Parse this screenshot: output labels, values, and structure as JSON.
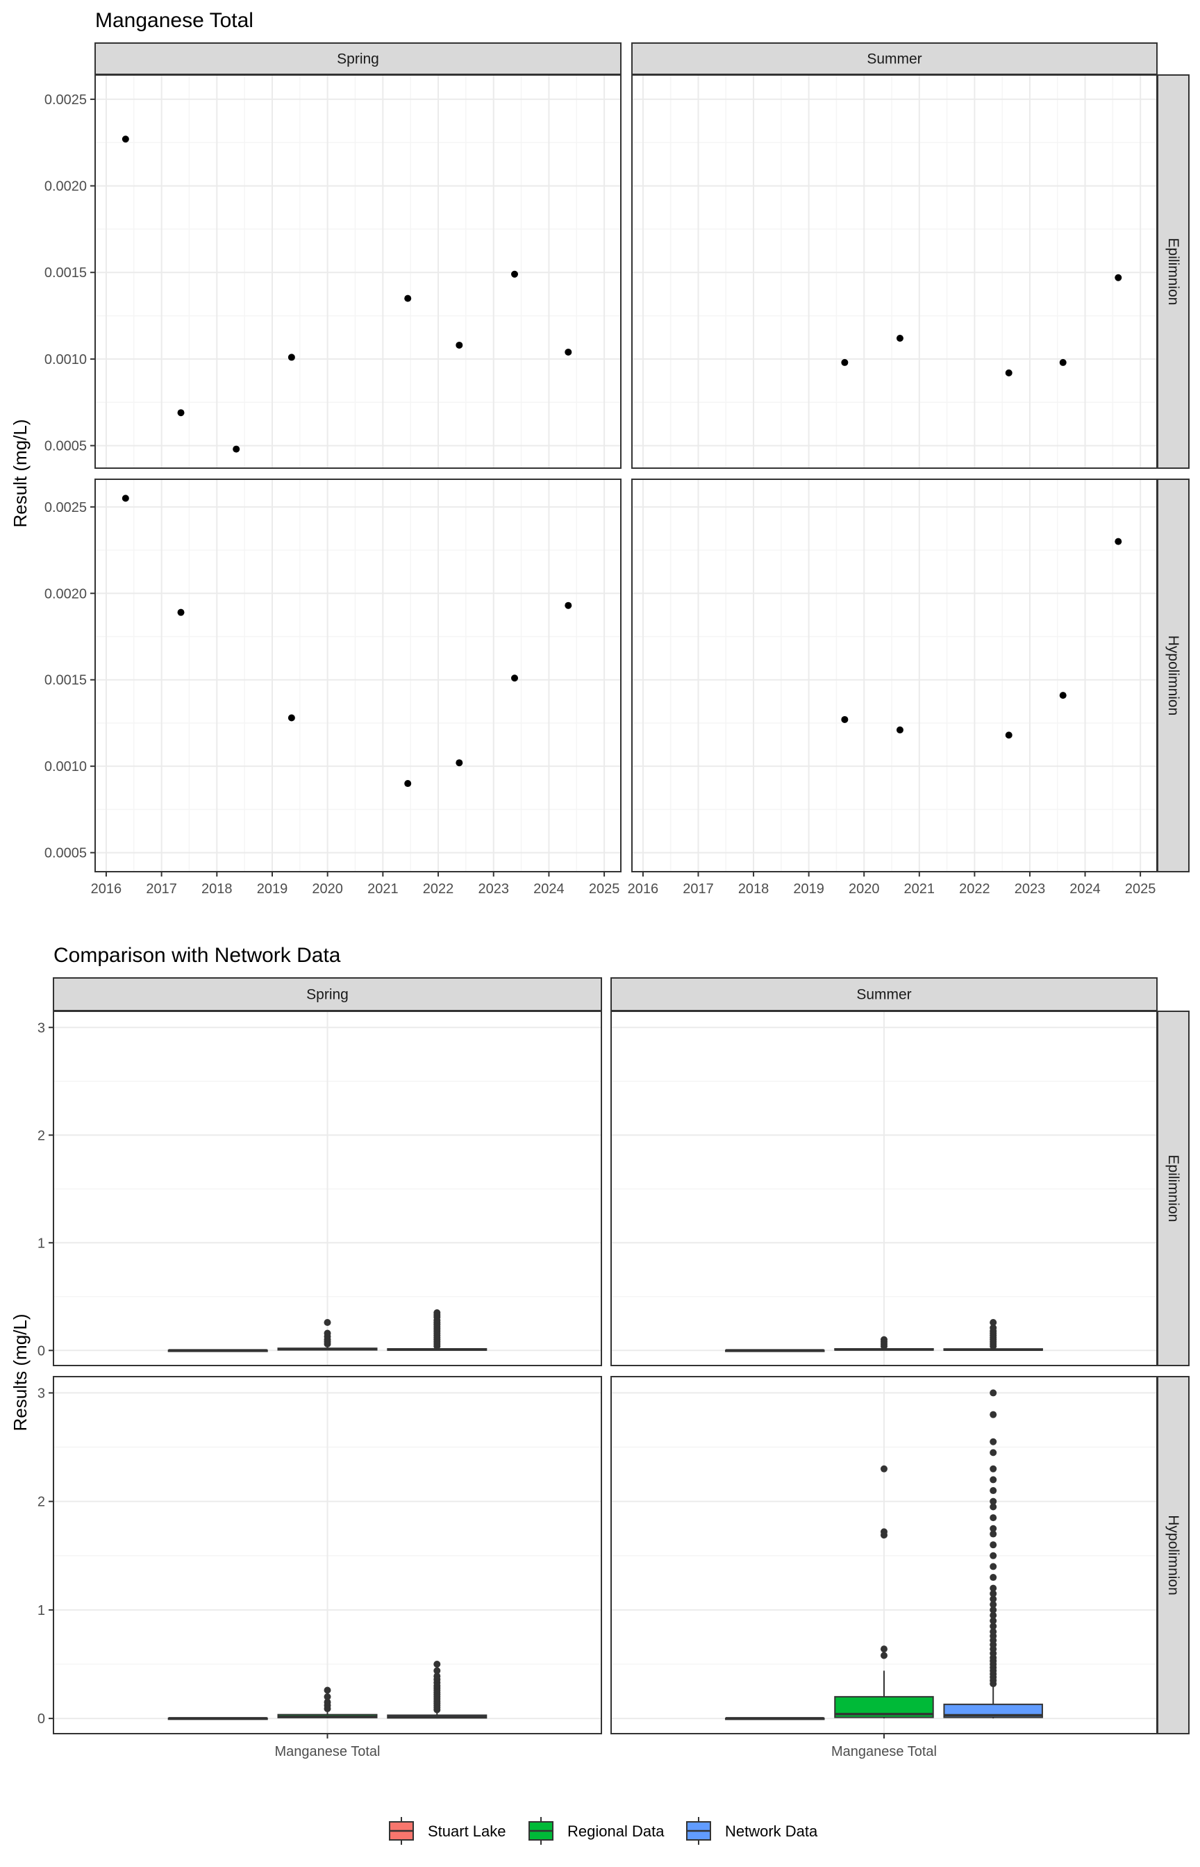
{
  "colors": {
    "strip_fill": "#d9d9d9",
    "panel_border": "#333333",
    "grid_major": "#ebebeb",
    "grid_minor": "#f5f5f5",
    "point": "#000000",
    "box_stroke": "#333333",
    "stuart_lake": "#F8766D",
    "regional_data": "#00BA38",
    "network_data": "#619CFF"
  },
  "legend": {
    "items": [
      {
        "label": "Stuart Lake",
        "color": "#F8766D"
      },
      {
        "label": "Regional Data",
        "color": "#00BA38"
      },
      {
        "label": "Network Data",
        "color": "#619CFF"
      }
    ]
  },
  "chart_data": [
    {
      "type": "scatter",
      "title": "Manganese Total",
      "ylabel": "Result (mg/L)",
      "xlabel": "",
      "facet_columns": [
        "Spring",
        "Summer"
      ],
      "facet_rows": [
        "Epilimnion",
        "Hypolimnion"
      ],
      "xlim": [
        2015.8,
        2025.3
      ],
      "x_ticks": [
        "2016",
        "2017",
        "2018",
        "2019",
        "2020",
        "2021",
        "2022",
        "2023",
        "2024",
        "2025"
      ],
      "row_ylims": [
        [
          0.00037,
          0.00264
        ],
        [
          0.00039,
          0.00266
        ]
      ],
      "y_ticks": [
        "0.0005",
        "0.0010",
        "0.0015",
        "0.0020",
        "0.0025"
      ],
      "panels": [
        {
          "column": "Spring",
          "row": "Epilimnion",
          "points": [
            [
              2016.35,
              0.00227
            ],
            [
              2017.35,
              0.00069
            ],
            [
              2018.35,
              0.00048
            ],
            [
              2019.35,
              0.00101
            ],
            [
              2021.45,
              0.00135
            ],
            [
              2022.38,
              0.00108
            ],
            [
              2023.38,
              0.00149
            ],
            [
              2024.35,
              0.00104
            ]
          ]
        },
        {
          "column": "Summer",
          "row": "Epilimnion",
          "points": [
            [
              2019.65,
              0.00098
            ],
            [
              2020.65,
              0.00112
            ],
            [
              2022.62,
              0.00092
            ],
            [
              2023.6,
              0.00098
            ],
            [
              2024.6,
              0.00147
            ]
          ]
        },
        {
          "column": "Spring",
          "row": "Hypolimnion",
          "points": [
            [
              2016.35,
              0.00255
            ],
            [
              2017.35,
              0.00189
            ],
            [
              2019.35,
              0.00128
            ],
            [
              2021.45,
              0.0009
            ],
            [
              2022.38,
              0.00102
            ],
            [
              2023.38,
              0.00151
            ],
            [
              2024.35,
              0.00193
            ]
          ]
        },
        {
          "column": "Summer",
          "row": "Hypolimnion",
          "points": [
            [
              2019.65,
              0.00127
            ],
            [
              2020.65,
              0.00121
            ],
            [
              2022.62,
              0.00118
            ],
            [
              2023.6,
              0.00141
            ],
            [
              2024.6,
              0.0023
            ]
          ]
        }
      ]
    },
    {
      "type": "box",
      "title": "Comparison with Network Data",
      "ylabel": "Results (mg/L)",
      "xlabel": "",
      "facet_columns": [
        "Spring",
        "Summer"
      ],
      "facet_rows": [
        "Epilimnion",
        "Hypolimnion"
      ],
      "category": "Manganese Total",
      "groups": [
        "Stuart Lake",
        "Regional Data",
        "Network Data"
      ],
      "ylim": [
        -0.14,
        3.15
      ],
      "y_ticks": [
        0,
        1,
        2,
        3
      ],
      "panels": [
        {
          "column": "Spring",
          "row": "Epilimnion",
          "boxes": [
            {
              "group": "Stuart Lake",
              "q1": 0.0007,
              "median": 0.001,
              "q3": 0.0013,
              "whisker_low": 0.0005,
              "whisker_high": 0.0023,
              "outliers": []
            },
            {
              "group": "Regional Data",
              "q1": 0.005,
              "median": 0.01,
              "q3": 0.02,
              "whisker_low": 0.0005,
              "whisker_high": 0.04,
              "outliers": [
                0.06,
                0.08,
                0.1,
                0.13,
                0.16,
                0.26
              ]
            },
            {
              "group": "Network Data",
              "q1": 0.003,
              "median": 0.008,
              "q3": 0.015,
              "whisker_low": 0.0005,
              "whisker_high": 0.03,
              "outliers": [
                0.04,
                0.06,
                0.08,
                0.1,
                0.12,
                0.14,
                0.16,
                0.18,
                0.2,
                0.22,
                0.24,
                0.26,
                0.28,
                0.31,
                0.33,
                0.35
              ]
            }
          ]
        },
        {
          "column": "Summer",
          "row": "Epilimnion",
          "boxes": [
            {
              "group": "Stuart Lake",
              "q1": 0.0009,
              "median": 0.001,
              "q3": 0.0012,
              "whisker_low": 0.0009,
              "whisker_high": 0.0015,
              "outliers": []
            },
            {
              "group": "Regional Data",
              "q1": 0.004,
              "median": 0.008,
              "q3": 0.015,
              "whisker_low": 0.0005,
              "whisker_high": 0.03,
              "outliers": [
                0.04,
                0.06,
                0.08,
                0.1
              ]
            },
            {
              "group": "Network Data",
              "q1": 0.003,
              "median": 0.007,
              "q3": 0.014,
              "whisker_low": 0.0005,
              "whisker_high": 0.03,
              "outliers": [
                0.04,
                0.06,
                0.08,
                0.1,
                0.12,
                0.14,
                0.16,
                0.18,
                0.21,
                0.26
              ]
            }
          ]
        },
        {
          "column": "Spring",
          "row": "Hypolimnion",
          "boxes": [
            {
              "group": "Stuart Lake",
              "q1": 0.001,
              "median": 0.0013,
              "q3": 0.0019,
              "whisker_low": 0.0009,
              "whisker_high": 0.0026,
              "outliers": []
            },
            {
              "group": "Regional Data",
              "q1": 0.008,
              "median": 0.015,
              "q3": 0.035,
              "whisker_low": 0.001,
              "whisker_high": 0.07,
              "outliers": [
                0.09,
                0.12,
                0.15,
                0.2,
                0.26
              ]
            },
            {
              "group": "Network Data",
              "q1": 0.005,
              "median": 0.012,
              "q3": 0.03,
              "whisker_low": 0.0005,
              "whisker_high": 0.06,
              "outliers": [
                0.08,
                0.1,
                0.12,
                0.14,
                0.16,
                0.18,
                0.2,
                0.22,
                0.24,
                0.26,
                0.28,
                0.3,
                0.33,
                0.36,
                0.39,
                0.44,
                0.5
              ]
            }
          ]
        },
        {
          "column": "Summer",
          "row": "Hypolimnion",
          "boxes": [
            {
              "group": "Stuart Lake",
              "q1": 0.0012,
              "median": 0.0013,
              "q3": 0.0014,
              "whisker_low": 0.0012,
              "whisker_high": 0.0023,
              "outliers": []
            },
            {
              "group": "Regional Data",
              "q1": 0.01,
              "median": 0.04,
              "q3": 0.2,
              "whisker_low": 0.0005,
              "whisker_high": 0.44,
              "outliers": [
                0.58,
                0.64,
                1.69,
                1.72,
                2.3
              ]
            },
            {
              "group": "Network Data",
              "q1": 0.01,
              "median": 0.03,
              "q3": 0.13,
              "whisker_low": 0.0005,
              "whisker_high": 0.3,
              "outliers": [
                0.32,
                0.35,
                0.38,
                0.41,
                0.44,
                0.47,
                0.5,
                0.53,
                0.56,
                0.6,
                0.64,
                0.68,
                0.72,
                0.76,
                0.8,
                0.85,
                0.9,
                0.95,
                1.0,
                1.05,
                1.1,
                1.15,
                1.2,
                1.3,
                1.4,
                1.5,
                1.6,
                1.7,
                1.75,
                1.85,
                1.95,
                2.0,
                2.1,
                2.2,
                2.3,
                2.45,
                2.55,
                2.8,
                3.0
              ]
            }
          ]
        }
      ]
    }
  ]
}
